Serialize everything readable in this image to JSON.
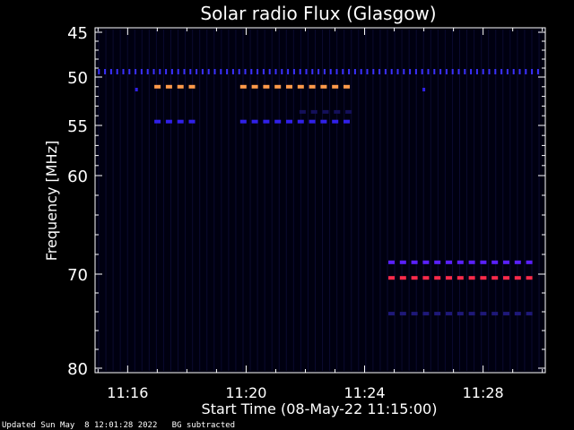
{
  "chart_data": {
    "type": "heatmap",
    "title": "Solar radio Flux (Glasgow)",
    "xlabel": "Start Time (08-May-22 11:15:00)",
    "ylabel": "Frequency [MHz]",
    "xlim_minutes_after_1115": [
      -0.1,
      15.1
    ],
    "ylim_mhz": [
      45,
      80
    ],
    "x_ticks": [
      "11:16",
      "11:20",
      "11:24",
      "11:28"
    ],
    "y_ticks": [
      "45",
      "50",
      "55",
      "60",
      "70",
      "80"
    ],
    "y_tick_values": [
      45,
      50,
      55,
      60,
      70,
      80
    ],
    "background": "#000010",
    "bands": [
      {
        "mhz": 49.4,
        "start_min": 0.0,
        "end_min": 15.0,
        "color": "#3a30ff",
        "dash": "fine"
      },
      {
        "mhz": 51.0,
        "start_min": 1.9,
        "end_min": 3.4,
        "color": "#ff9a4a",
        "dash": "coarse"
      },
      {
        "mhz": 51.0,
        "start_min": 4.8,
        "end_min": 8.6,
        "color": "#ff9a4a",
        "dash": "coarse"
      },
      {
        "mhz": 54.6,
        "start_min": 1.9,
        "end_min": 3.4,
        "color": "#3020e8",
        "dash": "coarse"
      },
      {
        "mhz": 54.6,
        "start_min": 4.8,
        "end_min": 8.6,
        "color": "#3020e8",
        "dash": "coarse"
      },
      {
        "mhz": 53.6,
        "start_min": 6.8,
        "end_min": 8.6,
        "color": "#14105a",
        "dash": "coarse"
      },
      {
        "mhz": 68.8,
        "start_min": 9.8,
        "end_min": 14.6,
        "color": "#5a20ff",
        "dash": "coarse"
      },
      {
        "mhz": 70.4,
        "start_min": 9.8,
        "end_min": 14.6,
        "color": "#ff2a4a",
        "dash": "coarse"
      },
      {
        "mhz": 74.2,
        "start_min": 9.8,
        "end_min": 14.6,
        "color": "#1e1878",
        "dash": "coarse"
      }
    ],
    "spots": [
      {
        "mhz": 51.3,
        "min": 1.3,
        "color": "#3020e8"
      },
      {
        "mhz": 51.3,
        "min": 11.0,
        "color": "#3020e8"
      }
    ]
  },
  "footer": {
    "text": "Updated Sun May  8 12:01:28 2022   BG subtracted"
  }
}
